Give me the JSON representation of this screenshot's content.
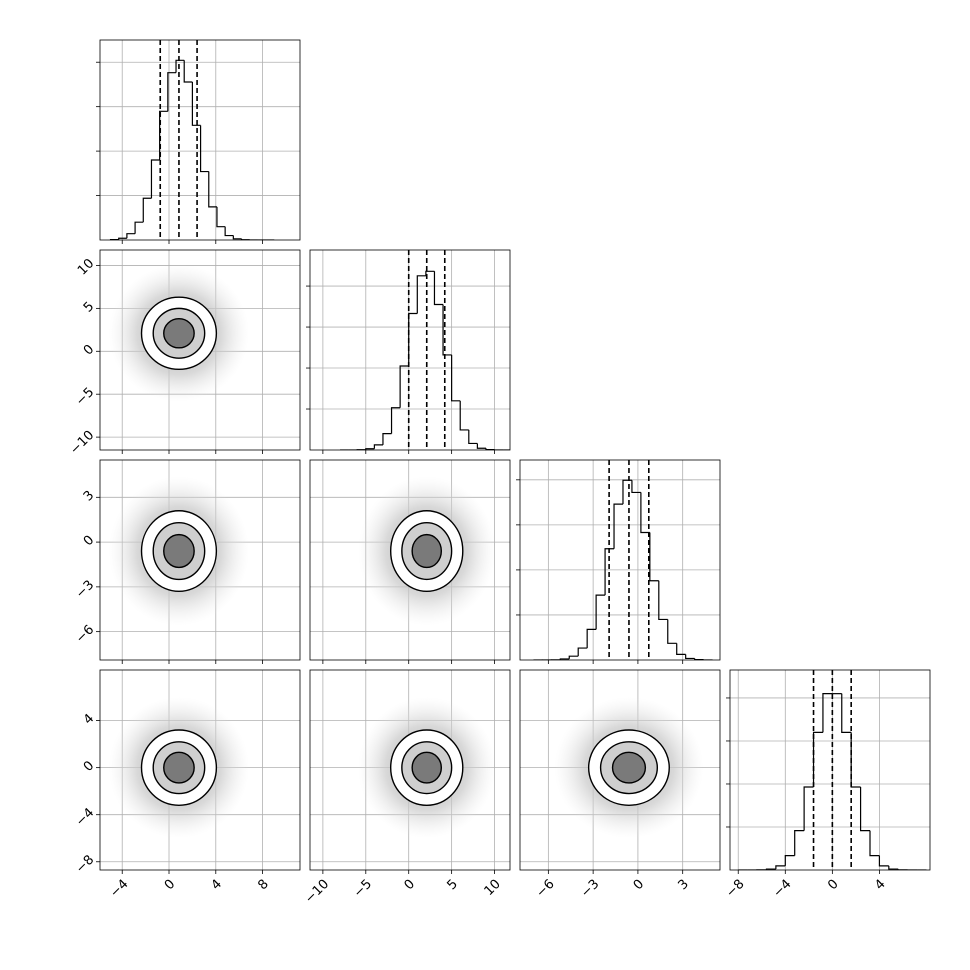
{
  "chart_data": {
    "type": "corner",
    "grid": true,
    "variables": [
      {
        "lim": [
          -5.9,
          11.2
        ],
        "ticks": [
          {
            "value": -4,
            "label": "−4"
          },
          0,
          4,
          8
        ],
        "hist": {
          "bins": [
            -5,
            -4.3,
            -3.6,
            -2.9,
            -2.2,
            -1.5,
            -0.8,
            -0.1,
            0.6,
            1.3,
            2,
            2.7,
            3.4,
            4.1,
            4.8,
            5.5,
            6.2,
            6.9,
            7.6,
            8.3,
            9
          ],
          "counts": [
            10,
            40,
            142,
            401,
            940,
            1800,
            2895,
            3765,
            4043,
            3555,
            2580,
            1540,
            746,
            300,
            100,
            27,
            6,
            0,
            0,
            0
          ],
          "ylim": [
            0,
            4500
          ],
          "yticks": [
            1000,
            2000,
            3000,
            4000
          ],
          "quantiles": [
            -0.75,
            0.85,
            2.4
          ]
        }
      },
      {
        "lim": [
          -11.5,
          11.8
        ],
        "ticks": [
          {
            "value": -10,
            "label": "−10"
          },
          {
            "value": -5,
            "label": "−5"
          },
          0,
          5,
          10
        ],
        "hist": {
          "bins": [
            -8,
            -7,
            -6,
            -5,
            -4,
            -3,
            -2,
            -1,
            0,
            1,
            2,
            3,
            4,
            5,
            6,
            7,
            8,
            9,
            10,
            11,
            12
          ],
          "counts": [
            0,
            0,
            6,
            30,
            125,
            400,
            1030,
            2050,
            3330,
            4250,
            4360,
            3550,
            2320,
            1200,
            490,
            160,
            42,
            9,
            0,
            0
          ],
          "ylim": [
            0,
            4880
          ],
          "yticks": [
            1000,
            2000,
            3000,
            4000
          ],
          "quantiles": [
            0,
            2.1,
            4.2
          ]
        }
      },
      {
        "lim": [
          -7.9,
          5.5
        ],
        "ticks": [
          {
            "value": -6,
            "label": "−6"
          },
          {
            "value": -3,
            "label": "−3"
          },
          0,
          3
        ],
        "hist": {
          "bins": [
            -7,
            -6.4,
            -5.8,
            -5.2,
            -4.6,
            -4,
            -3.4,
            -2.8,
            -2.2,
            -1.6,
            -1,
            -0.4,
            0.2,
            0.8,
            1.4,
            2,
            2.6,
            3.2,
            3.8,
            4.4,
            5
          ],
          "counts": [
            0,
            1,
            4,
            24,
            85,
            265,
            680,
            1440,
            2470,
            3460,
            3990,
            3720,
            2830,
            1760,
            900,
            370,
            125,
            35,
            8,
            0
          ],
          "ylim": [
            0,
            4440
          ],
          "yticks": [
            1000,
            2000,
            3000,
            4000
          ],
          "quantiles": [
            -1.93,
            -0.6,
            0.73
          ]
        }
      },
      {
        "lim": [
          -8.7,
          8.3
        ],
        "ticks": [
          {
            "value": -8,
            "label": "−8"
          },
          {
            "value": -4,
            "label": "−4"
          },
          0,
          4
        ],
        "hist": {
          "bins": [
            -8,
            -7.2,
            -6.4,
            -5.6,
            -4.8,
            -4,
            -3.2,
            -2.4,
            -1.6,
            -0.8,
            0,
            0.8,
            1.6,
            2.4,
            3.2,
            4,
            4.8,
            5.6,
            6.4,
            7.2,
            8
          ],
          "counts": [
            0,
            0,
            4,
            21,
            96,
            335,
            915,
            1930,
            3200,
            4100,
            4100,
            3200,
            1930,
            915,
            335,
            96,
            21,
            4,
            0,
            0
          ],
          "ylim": [
            0,
            4650
          ],
          "yticks": [
            1000,
            2000,
            3000,
            4000
          ],
          "quantiles": [
            -1.6,
            0,
            1.6
          ]
        }
      }
    ],
    "pairs": [
      {
        "x": 0,
        "y": 1,
        "center": [
          0.85,
          2.1
        ],
        "contours": [
          [
            3.2,
            4.2
          ],
          [
            2.2,
            2.9
          ],
          [
            1.3,
            1.7
          ]
        ],
        "cloud": [
          6,
          8
        ]
      },
      {
        "x": 0,
        "y": 2,
        "center": [
          0.85,
          -0.6
        ],
        "contours": [
          [
            3.2,
            2.7
          ],
          [
            2.2,
            1.9
          ],
          [
            1.3,
            1.1
          ]
        ],
        "cloud": [
          6,
          5
        ]
      },
      {
        "x": 1,
        "y": 2,
        "center": [
          2.1,
          -0.6
        ],
        "contours": [
          [
            4.2,
            2.7
          ],
          [
            2.9,
            1.9
          ],
          [
            1.7,
            1.1
          ]
        ],
        "cloud": [
          8,
          5
        ]
      },
      {
        "x": 0,
        "y": 3,
        "center": [
          0.85,
          0
        ],
        "contours": [
          [
            3.2,
            3.2
          ],
          [
            2.2,
            2.2
          ],
          [
            1.3,
            1.3
          ]
        ],
        "cloud": [
          6,
          6
        ]
      },
      {
        "x": 1,
        "y": 3,
        "center": [
          2.1,
          0
        ],
        "contours": [
          [
            4.2,
            3.2
          ],
          [
            2.9,
            2.2
          ],
          [
            1.7,
            1.3
          ]
        ],
        "cloud": [
          8,
          6
        ]
      },
      {
        "x": 2,
        "y": 3,
        "center": [
          -0.6,
          0
        ],
        "contours": [
          [
            2.7,
            3.2
          ],
          [
            1.9,
            2.2
          ],
          [
            1.1,
            1.3
          ]
        ],
        "cloud": [
          5,
          6
        ]
      }
    ]
  }
}
